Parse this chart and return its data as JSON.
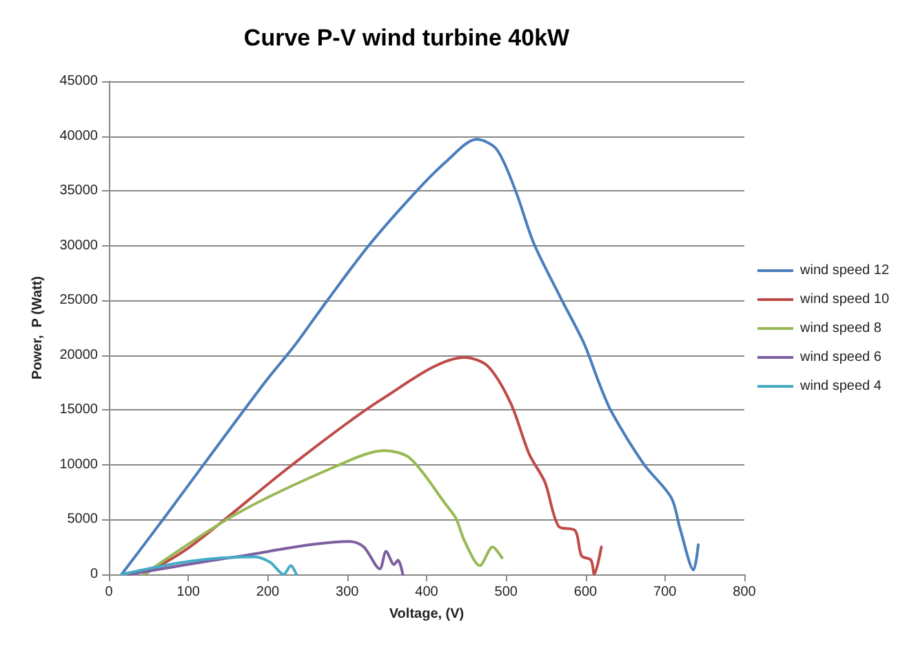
{
  "chart_data": {
    "type": "line",
    "title": "Curve P-V wind turbine 40kW",
    "xlabel": "Voltage, (V)",
    "ylabel": "Power,  P (Watt)",
    "xlim": [
      0,
      800
    ],
    "xticks": [
      0,
      100,
      200,
      300,
      400,
      500,
      600,
      700,
      800
    ],
    "ylim": [
      0,
      45000
    ],
    "yticks": [
      0,
      5000,
      10000,
      15000,
      20000,
      25000,
      30000,
      35000,
      40000,
      45000
    ],
    "grid": "y",
    "legend": "right",
    "marker": "none",
    "line_style": "solid",
    "series": [
      {
        "name": "wind speed 12",
        "color": "#4a7ebb",
        "x": [
          16,
          67,
          194,
          235,
          275,
          327,
          385,
          425,
          463,
          488,
          512,
          535,
          569,
          598,
          618,
          633,
          673,
          708,
          719,
          736,
          742
        ],
        "values": [
          0,
          4900,
          17300,
          21000,
          25000,
          30000,
          34800,
          37700,
          39700,
          38800,
          35000,
          30200,
          25200,
          21100,
          17300,
          14800,
          10100,
          7000,
          4200,
          400,
          2700
        ]
      },
      {
        "name": "wind speed 10",
        "color": "#be4b48",
        "x": [
          44,
          102,
          229,
          344,
          448,
          477,
          506,
          529,
          549,
          566,
          587,
          595,
          607,
          611,
          620
        ],
        "values": [
          0,
          2500,
          9900,
          16000,
          19800,
          19000,
          15600,
          11000,
          8400,
          4400,
          4000,
          1700,
          1300,
          0,
          2500
        ]
      },
      {
        "name": "wind speed 8",
        "color": "#98b954",
        "x": [
          44,
          160,
          287,
          347,
          379,
          425,
          437,
          448,
          467,
          483,
          495
        ],
        "values": [
          0,
          5500,
          9900,
          11300,
          10600,
          6300,
          5100,
          3000,
          800,
          2500,
          1500
        ]
      },
      {
        "name": "wind speed 6",
        "color": "#7d5fa0",
        "x": [
          25,
          160,
          304,
          321,
          341,
          349,
          359,
          364,
          370
        ],
        "values": [
          0,
          1600,
          3000,
          2500,
          500,
          2100,
          900,
          1300,
          0
        ]
      },
      {
        "name": "wind speed 4",
        "color": "#46aac5",
        "x": [
          16,
          102,
          183,
          203,
          220,
          229,
          236
        ],
        "values": [
          0,
          1200,
          1600,
          1100,
          0,
          800,
          0
        ]
      }
    ]
  }
}
